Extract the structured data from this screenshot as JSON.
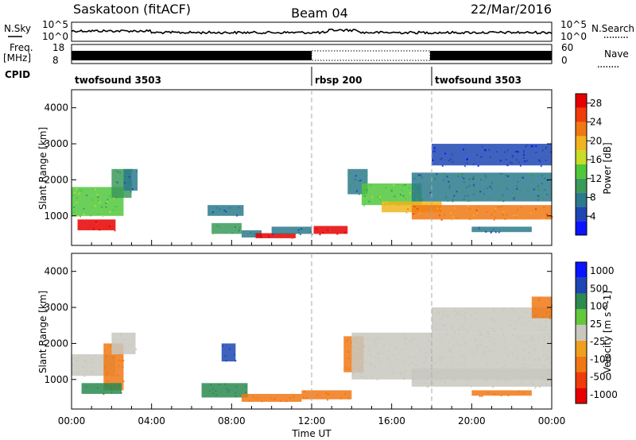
{
  "header": {
    "radar": "Saskatoon (fitACF)",
    "beam": "Beam 04",
    "date": "22/Mar/2016"
  },
  "top_panels": {
    "nsky_label": "N.Sky",
    "nsearch_label": "N.Search",
    "nsky_ticks": [
      "10^5",
      "10^0"
    ],
    "freq_label_1": "Freq.",
    "freq_label_2": "[MHz]",
    "freq_ticks": [
      "18",
      "8"
    ],
    "nave_ticks": [
      "60",
      "0"
    ],
    "nave_label": "Nave",
    "cpid_label": "CPID",
    "cpid_segments": [
      {
        "name": "twofsound 3503",
        "start_h": 0,
        "end_h": 12
      },
      {
        "name": "rbsp 200",
        "start_h": 12,
        "end_h": 18
      },
      {
        "name": "twofsound 3503",
        "start_h": 18,
        "end_h": 24
      }
    ]
  },
  "axes": {
    "ylabel": "Slant Range [km]",
    "xlabel": "Time UT",
    "x_ticks": [
      "00:00",
      "04:00",
      "08:00",
      "12:00",
      "16:00",
      "20:00",
      "00:00"
    ],
    "y_ticks": [
      "1000",
      "2000",
      "3000",
      "4000"
    ]
  },
  "colors": {
    "power_scale": [
      "#0a14ff",
      "#1e46b4",
      "#2c7a8c",
      "#3c9a5a",
      "#50c83c",
      "#c8dc28",
      "#f0b41e",
      "#f07814",
      "#f03c0a",
      "#e60000"
    ],
    "velocity_scale": [
      "#0a14ff",
      "#1e46b4",
      "#2c8a50",
      "#64c83c",
      "#c8c8c0",
      "#f0a01e",
      "#f07814",
      "#f03c0a",
      "#e60000"
    ]
  },
  "chart_data": [
    {
      "type": "heatmap",
      "title": "Power",
      "ylabel": "Slant Range [km]",
      "xlim": [
        0,
        24
      ],
      "ylim": [
        180,
        4500
      ],
      "colorbar": {
        "label": "Power [dB]",
        "ticks": [
          "4",
          "8",
          "12",
          "16",
          "20",
          "24",
          "28"
        ],
        "range": [
          0,
          30
        ]
      },
      "regions": [
        {
          "t": [
            0.0,
            2.6
          ],
          "r": [
            1000,
            1800
          ],
          "v": 14
        },
        {
          "t": [
            0.3,
            2.2
          ],
          "r": [
            600,
            900
          ],
          "v": 27
        },
        {
          "t": [
            2.0,
            3.0
          ],
          "r": [
            1500,
            2300
          ],
          "v": 10
        },
        {
          "t": [
            2.6,
            3.3
          ],
          "r": [
            1700,
            2300
          ],
          "v": 6
        },
        {
          "t": [
            6.8,
            8.6
          ],
          "r": [
            1000,
            1300
          ],
          "v": 6
        },
        {
          "t": [
            7.0,
            8.5
          ],
          "r": [
            500,
            800
          ],
          "v": 10
        },
        {
          "t": [
            8.5,
            9.5
          ],
          "r": [
            400,
            600
          ],
          "v": 8
        },
        {
          "t": [
            9.2,
            11.2
          ],
          "r": [
            380,
            520
          ],
          "v": 27
        },
        {
          "t": [
            10.0,
            12.0
          ],
          "r": [
            500,
            700
          ],
          "v": 6
        },
        {
          "t": [
            12.1,
            13.8
          ],
          "r": [
            500,
            720
          ],
          "v": 27
        },
        {
          "t": [
            13.8,
            14.8
          ],
          "r": [
            1600,
            2300
          ],
          "v": 8
        },
        {
          "t": [
            14.5,
            17.5
          ],
          "r": [
            1300,
            1900
          ],
          "v": 13
        },
        {
          "t": [
            15.5,
            18.5
          ],
          "r": [
            1100,
            1400
          ],
          "v": 19
        },
        {
          "t": [
            17.0,
            24.0
          ],
          "r": [
            900,
            1300
          ],
          "v": 22
        },
        {
          "t": [
            17.0,
            24.0
          ],
          "r": [
            1400,
            2200
          ],
          "v": 8
        },
        {
          "t": [
            18.0,
            24.0
          ],
          "r": [
            2400,
            3000
          ],
          "v": 4
        },
        {
          "t": [
            20.0,
            23.0
          ],
          "r": [
            550,
            700
          ],
          "v": 6
        }
      ]
    },
    {
      "type": "heatmap",
      "title": "Velocity",
      "ylabel": "Slant Range [km]",
      "xlabel": "Time UT",
      "xlim": [
        0,
        24
      ],
      "ylim": [
        180,
        4500
      ],
      "colorbar": {
        "label": "Velocity [m s^-1]",
        "ticks": [
          "1000",
          "500",
          "100",
          "25",
          "-25",
          "-100",
          "-500",
          "-1000"
        ],
        "range": [
          -1000,
          1000
        ]
      },
      "regions": [
        {
          "t": [
            0.0,
            2.2
          ],
          "r": [
            1100,
            1700
          ],
          "v": 0
        },
        {
          "t": [
            1.6,
            2.6
          ],
          "r": [
            700,
            2000
          ],
          "v": -300
        },
        {
          "t": [
            0.5,
            2.5
          ],
          "r": [
            600,
            900
          ],
          "v": 60
        },
        {
          "t": [
            2.0,
            3.2
          ],
          "r": [
            1700,
            2300
          ],
          "v": 0
        },
        {
          "t": [
            6.5,
            8.8
          ],
          "r": [
            500,
            900
          ],
          "v": 80
        },
        {
          "t": [
            7.5,
            8.2
          ],
          "r": [
            1500,
            2000
          ],
          "v": 400
        },
        {
          "t": [
            8.5,
            11.5
          ],
          "r": [
            380,
            600
          ],
          "v": -300
        },
        {
          "t": [
            11.5,
            14.0
          ],
          "r": [
            450,
            700
          ],
          "v": -200
        },
        {
          "t": [
            13.6,
            14.6
          ],
          "r": [
            1200,
            2200
          ],
          "v": -300
        },
        {
          "t": [
            14.0,
            24.0
          ],
          "r": [
            1000,
            2300
          ],
          "v": 0
        },
        {
          "t": [
            17.0,
            24.0
          ],
          "r": [
            800,
            1300
          ],
          "v": -20
        },
        {
          "t": [
            18.0,
            24.0
          ],
          "r": [
            2300,
            3000
          ],
          "v": 0
        },
        {
          "t": [
            23.0,
            24.0
          ],
          "r": [
            2700,
            3300
          ],
          "v": -200
        },
        {
          "t": [
            20.0,
            23.0
          ],
          "r": [
            550,
            700
          ],
          "v": -200
        }
      ]
    }
  ]
}
